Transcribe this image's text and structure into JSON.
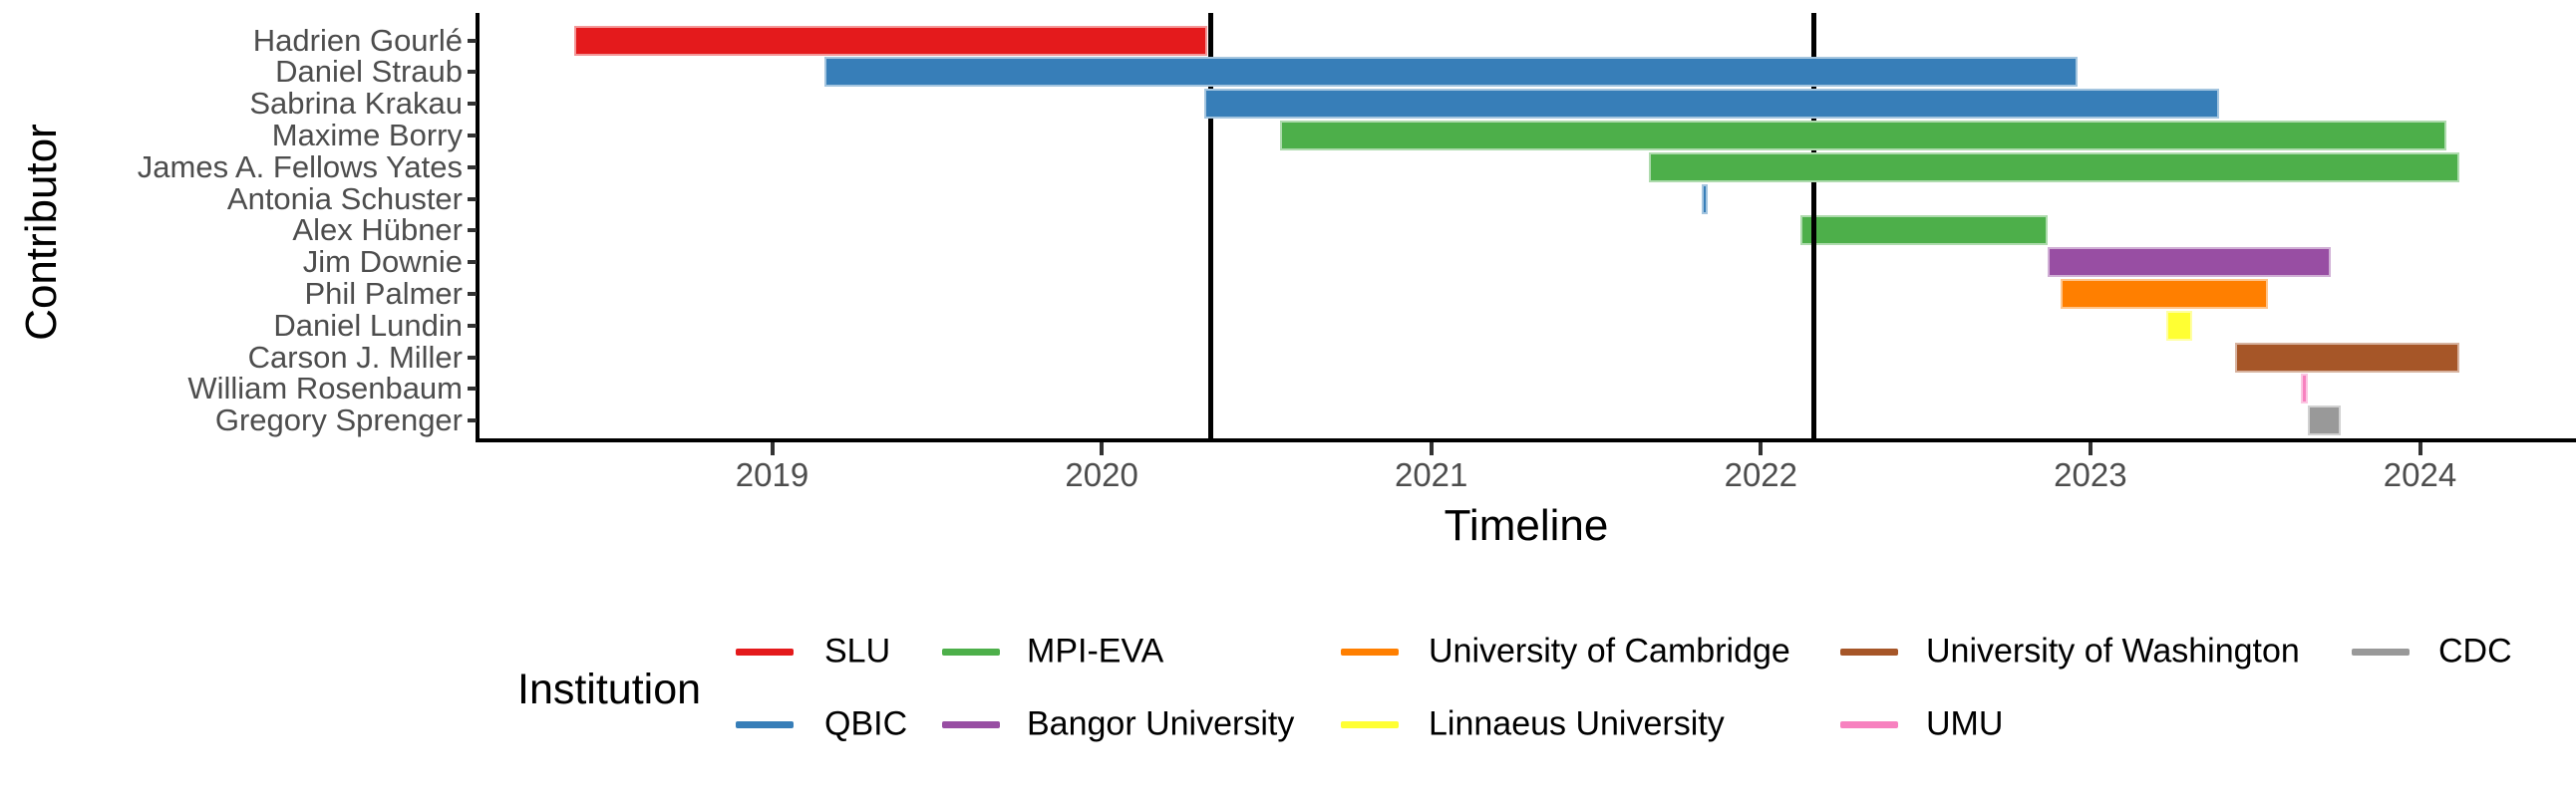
{
  "y_axis": {
    "title": "Contributor"
  },
  "x_axis": {
    "title": "Timeline"
  },
  "legend": {
    "title": "Institution",
    "entries": [
      {
        "label": "SLU",
        "color": "#E41A1C",
        "row": 0,
        "col": 0
      },
      {
        "label": "MPI-EVA",
        "color": "#4DAF4A",
        "row": 0,
        "col": 1
      },
      {
        "label": "University of Cambridge",
        "color": "#FF7F00",
        "row": 0,
        "col": 2
      },
      {
        "label": "University of Washington",
        "color": "#A65628",
        "row": 0,
        "col": 3
      },
      {
        "label": "CDC",
        "color": "#999999",
        "row": 0,
        "col": 4
      },
      {
        "label": "QBIC",
        "color": "#377EB8",
        "row": 1,
        "col": 0
      },
      {
        "label": "Bangor University",
        "color": "#984EA3",
        "row": 1,
        "col": 1
      },
      {
        "label": "Linnaeus University",
        "color": "#FFFF33",
        "row": 1,
        "col": 2
      },
      {
        "label": "UMU",
        "color": "#F781BF",
        "row": 1,
        "col": 3
      }
    ]
  },
  "chart_data": {
    "type": "bar",
    "variant": "horizontal-gantt-timeline",
    "title": "",
    "xlabel": "Timeline",
    "ylabel": "Contributor",
    "legend_title": "Institution",
    "legend_position": "bottom",
    "grid": false,
    "x_ticks": [
      2019,
      2020,
      2021,
      2022,
      2023,
      2024
    ],
    "xlim": [
      2018.1,
      2024.47
    ],
    "vlines": [
      2020.33,
      2022.16
    ],
    "institution_colors": {
      "SLU": "#E41A1C",
      "QBIC": "#377EB8",
      "MPI-EVA": "#4DAF4A",
      "Bangor University": "#984EA3",
      "University of Cambridge": "#FF7F00",
      "Linnaeus University": "#FFFF33",
      "University of Washington": "#A65628",
      "UMU": "#F781BF",
      "CDC": "#999999"
    },
    "bars": [
      {
        "contributor": "Hadrien Gourlé",
        "institution": "SLU",
        "start": 2018.4,
        "end": 2020.32
      },
      {
        "contributor": "Daniel Straub",
        "institution": "QBIC",
        "start": 2019.16,
        "end": 2022.96
      },
      {
        "contributor": "Sabrina Krakau",
        "institution": "QBIC",
        "start": 2020.31,
        "end": 2023.39
      },
      {
        "contributor": "Maxime Borry",
        "institution": "MPI-EVA",
        "start": 2020.54,
        "end": 2024.08
      },
      {
        "contributor": "James A. Fellows Yates",
        "institution": "MPI-EVA",
        "start": 2021.66,
        "end": 2024.12
      },
      {
        "contributor": "Antonia Schuster",
        "institution": "QBIC",
        "start": 2021.82,
        "end": 2021.84
      },
      {
        "contributor": "Alex Hübner",
        "institution": "MPI-EVA",
        "start": 2022.12,
        "end": 2022.87
      },
      {
        "contributor": "Jim Downie",
        "institution": "Bangor University",
        "start": 2022.87,
        "end": 2023.73
      },
      {
        "contributor": "Phil Palmer",
        "institution": "University of Cambridge",
        "start": 2022.91,
        "end": 2023.54
      },
      {
        "contributor": "Daniel Lundin",
        "institution": "Linnaeus University",
        "start": 2023.23,
        "end": 2023.31
      },
      {
        "contributor": "Carson J. Miller",
        "institution": "University of Washington",
        "start": 2023.44,
        "end": 2024.12
      },
      {
        "contributor": "William Rosenbaum",
        "institution": "UMU",
        "start": 2023.64,
        "end": 2023.66
      },
      {
        "contributor": "Gregory Sprenger",
        "institution": "CDC",
        "start": 2023.66,
        "end": 2023.76
      }
    ]
  }
}
